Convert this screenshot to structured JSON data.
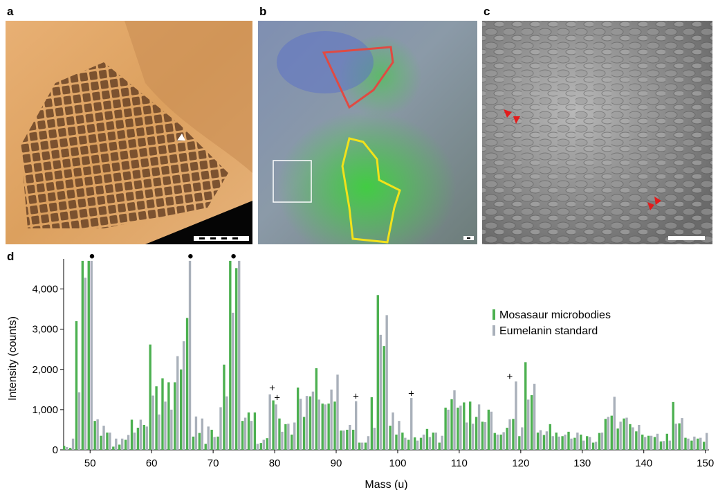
{
  "panel_labels": [
    "a",
    "b",
    "c"
  ],
  "chart_data": {
    "type": "bar",
    "label": "d",
    "xlabel": "Mass (u)",
    "ylabel": "Intensity (counts)",
    "legend": "right",
    "grid": false,
    "xlim": [
      45.7,
      150.6
    ],
    "ylim": [
      0,
      4750
    ],
    "xticks": [
      50,
      60,
      70,
      80,
      90,
      100,
      110,
      120,
      130,
      140,
      150
    ],
    "yticks": [
      0,
      {
        "value": 1000,
        "label": "1,000"
      },
      {
        "value": 2000,
        "label": "2,000"
      },
      {
        "value": 3000,
        "label": "3,000"
      },
      {
        "value": 4000,
        "label": "4,000"
      }
    ],
    "x": [
      46,
      47,
      48,
      49,
      50,
      51,
      52,
      53,
      54,
      55,
      56,
      57,
      58,
      59,
      60,
      61,
      62,
      63,
      64,
      65,
      66,
      67,
      68,
      69,
      70,
      71,
      72,
      73,
      74,
      75,
      76,
      77,
      78,
      79,
      80,
      81,
      82,
      83,
      84,
      85,
      86,
      87,
      88,
      89,
      90,
      91,
      92,
      93,
      94,
      95,
      96,
      97,
      98,
      99,
      100,
      101,
      102,
      103,
      104,
      105,
      106,
      107,
      108,
      109,
      110,
      111,
      112,
      113,
      114,
      115,
      116,
      117,
      118,
      119,
      120,
      121,
      122,
      123,
      124,
      125,
      126,
      127,
      128,
      129,
      130,
      131,
      132,
      133,
      134,
      135,
      136,
      137,
      138,
      139,
      140,
      141,
      142,
      143,
      144,
      145,
      146,
      147,
      148,
      149,
      150
    ],
    "series": [
      {
        "name": "Mosasaur microbodies",
        "color": "#4cb050",
        "values": [
          100,
          50,
          3200,
          4700,
          4700,
          720,
          350,
          430,
          80,
          130,
          250,
          750,
          550,
          620,
          2620,
          1580,
          1780,
          1680,
          1680,
          2000,
          3280,
          330,
          420,
          150,
          500,
          330,
          2120,
          4700,
          4520,
          720,
          930,
          930,
          170,
          290,
          1230,
          780,
          640,
          380,
          1550,
          820,
          1330,
          2030,
          1150,
          1150,
          1200,
          480,
          500,
          500,
          180,
          180,
          1310,
          3850,
          2580,
          600,
          380,
          430,
          250,
          310,
          300,
          520,
          430,
          180,
          1050,
          1260,
          1050,
          1180,
          1200,
          820,
          700,
          1000,
          420,
          380,
          550,
          770,
          340,
          2180,
          1360,
          430,
          370,
          640,
          430,
          340,
          450,
          300,
          380,
          340,
          180,
          420,
          770,
          850,
          530,
          780,
          640,
          460,
          380,
          350,
          320,
          210,
          400,
          1190,
          660,
          300,
          230,
          280,
          200
        ]
      },
      {
        "name": "Eumelanin standard",
        "color": "#a9b0ba",
        "values": [
          70,
          280,
          1430,
          4280,
          4700,
          760,
          600,
          430,
          280,
          280,
          370,
          430,
          750,
          580,
          1350,
          880,
          1200,
          1000,
          2330,
          2700,
          4700,
          830,
          780,
          580,
          320,
          1060,
          1330,
          3410,
          4700,
          800,
          720,
          150,
          250,
          1380,
          1130,
          450,
          650,
          680,
          1270,
          1340,
          1450,
          1250,
          1130,
          1500,
          1870,
          480,
          620,
          1210,
          180,
          340,
          550,
          2860,
          3350,
          930,
          720,
          300,
          1290,
          230,
          380,
          320,
          430,
          350,
          1000,
          1480,
          1100,
          680,
          650,
          1130,
          690,
          950,
          380,
          440,
          760,
          1700,
          560,
          1250,
          1640,
          490,
          460,
          340,
          330,
          380,
          280,
          430,
          230,
          320,
          200,
          430,
          820,
          1320,
          700,
          800,
          560,
          620,
          320,
          350,
          400,
          220,
          230,
          650,
          790,
          280,
          330,
          300,
          420
        ]
      }
    ],
    "annotations": [
      {
        "x": 50.3,
        "y": 4830,
        "label": "●"
      },
      {
        "x": 66.3,
        "y": 4830,
        "label": "●"
      },
      {
        "x": 73.3,
        "y": 4830,
        "label": "●"
      },
      {
        "x": 79.6,
        "y": 1540,
        "label": "+"
      },
      {
        "x": 80.4,
        "y": 1300,
        "label": "+"
      },
      {
        "x": 93.2,
        "y": 1330,
        "label": "+"
      },
      {
        "x": 102.2,
        "y": 1400,
        "label": "+"
      },
      {
        "x": 118.2,
        "y": 1820,
        "label": "+"
      }
    ]
  }
}
